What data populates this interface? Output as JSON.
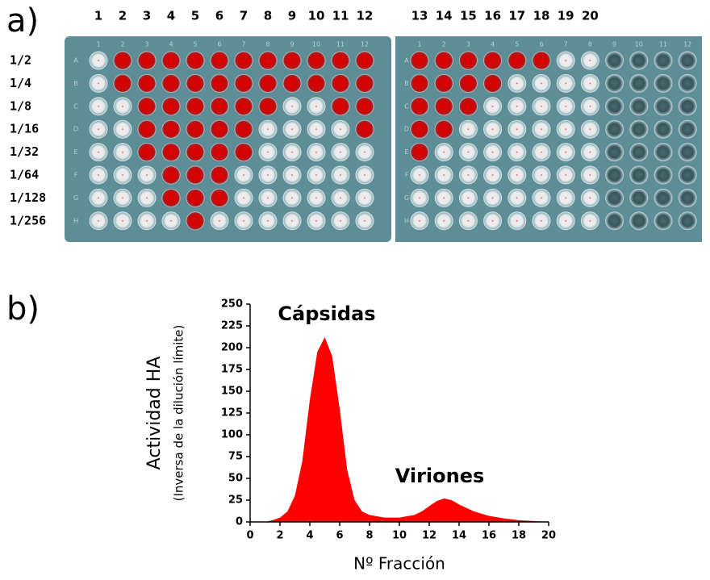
{
  "panel_a": {
    "label": "a)",
    "columns": [
      "1",
      "2",
      "3",
      "4",
      "5",
      "6",
      "7",
      "8",
      "9",
      "10",
      "11",
      "12",
      "13",
      "14",
      "15",
      "16",
      "17",
      "18",
      "19",
      "20"
    ],
    "rows": [
      "1/2",
      "1/4",
      "1/8",
      "1/16",
      "1/32",
      "1/64",
      "1/128",
      "1/256"
    ],
    "plate_well_rows": [
      "A",
      "B",
      "C",
      "D",
      "E",
      "F",
      "G",
      "H"
    ],
    "plate_well_columns": [
      "1",
      "2",
      "3",
      "4",
      "5",
      "6",
      "7",
      "8",
      "9",
      "10",
      "11",
      "12"
    ]
  },
  "chart_data": {
    "type": "area",
    "panel_label": "b)",
    "y_label": "Actividad HA",
    "y_sublabel": "(Inversa de la dilución límite)",
    "x_label": "Nº Fracción",
    "annotations": [
      "Cápsidas",
      "Viriones"
    ],
    "x": [
      1,
      1.5,
      2,
      2.5,
      3,
      3.5,
      4,
      4.5,
      5,
      5.5,
      6,
      6.5,
      7,
      7.5,
      8,
      9,
      10,
      11,
      11.5,
      12,
      12.5,
      13,
      13.5,
      14,
      15,
      16,
      17,
      18,
      19,
      20
    ],
    "values": [
      0,
      2,
      5,
      12,
      30,
      70,
      140,
      195,
      212,
      190,
      130,
      60,
      25,
      12,
      8,
      5,
      5,
      8,
      12,
      18,
      24,
      27,
      25,
      20,
      12,
      7,
      4,
      2,
      1,
      0
    ],
    "color": "#ff0000",
    "xlim": [
      0,
      20
    ],
    "xticks": [
      0,
      2,
      4,
      6,
      8,
      10,
      12,
      14,
      16,
      18,
      20
    ],
    "ylim": [
      0,
      250
    ],
    "yticks": [
      0,
      25,
      50,
      75,
      100,
      125,
      150,
      175,
      200,
      225,
      250
    ]
  }
}
